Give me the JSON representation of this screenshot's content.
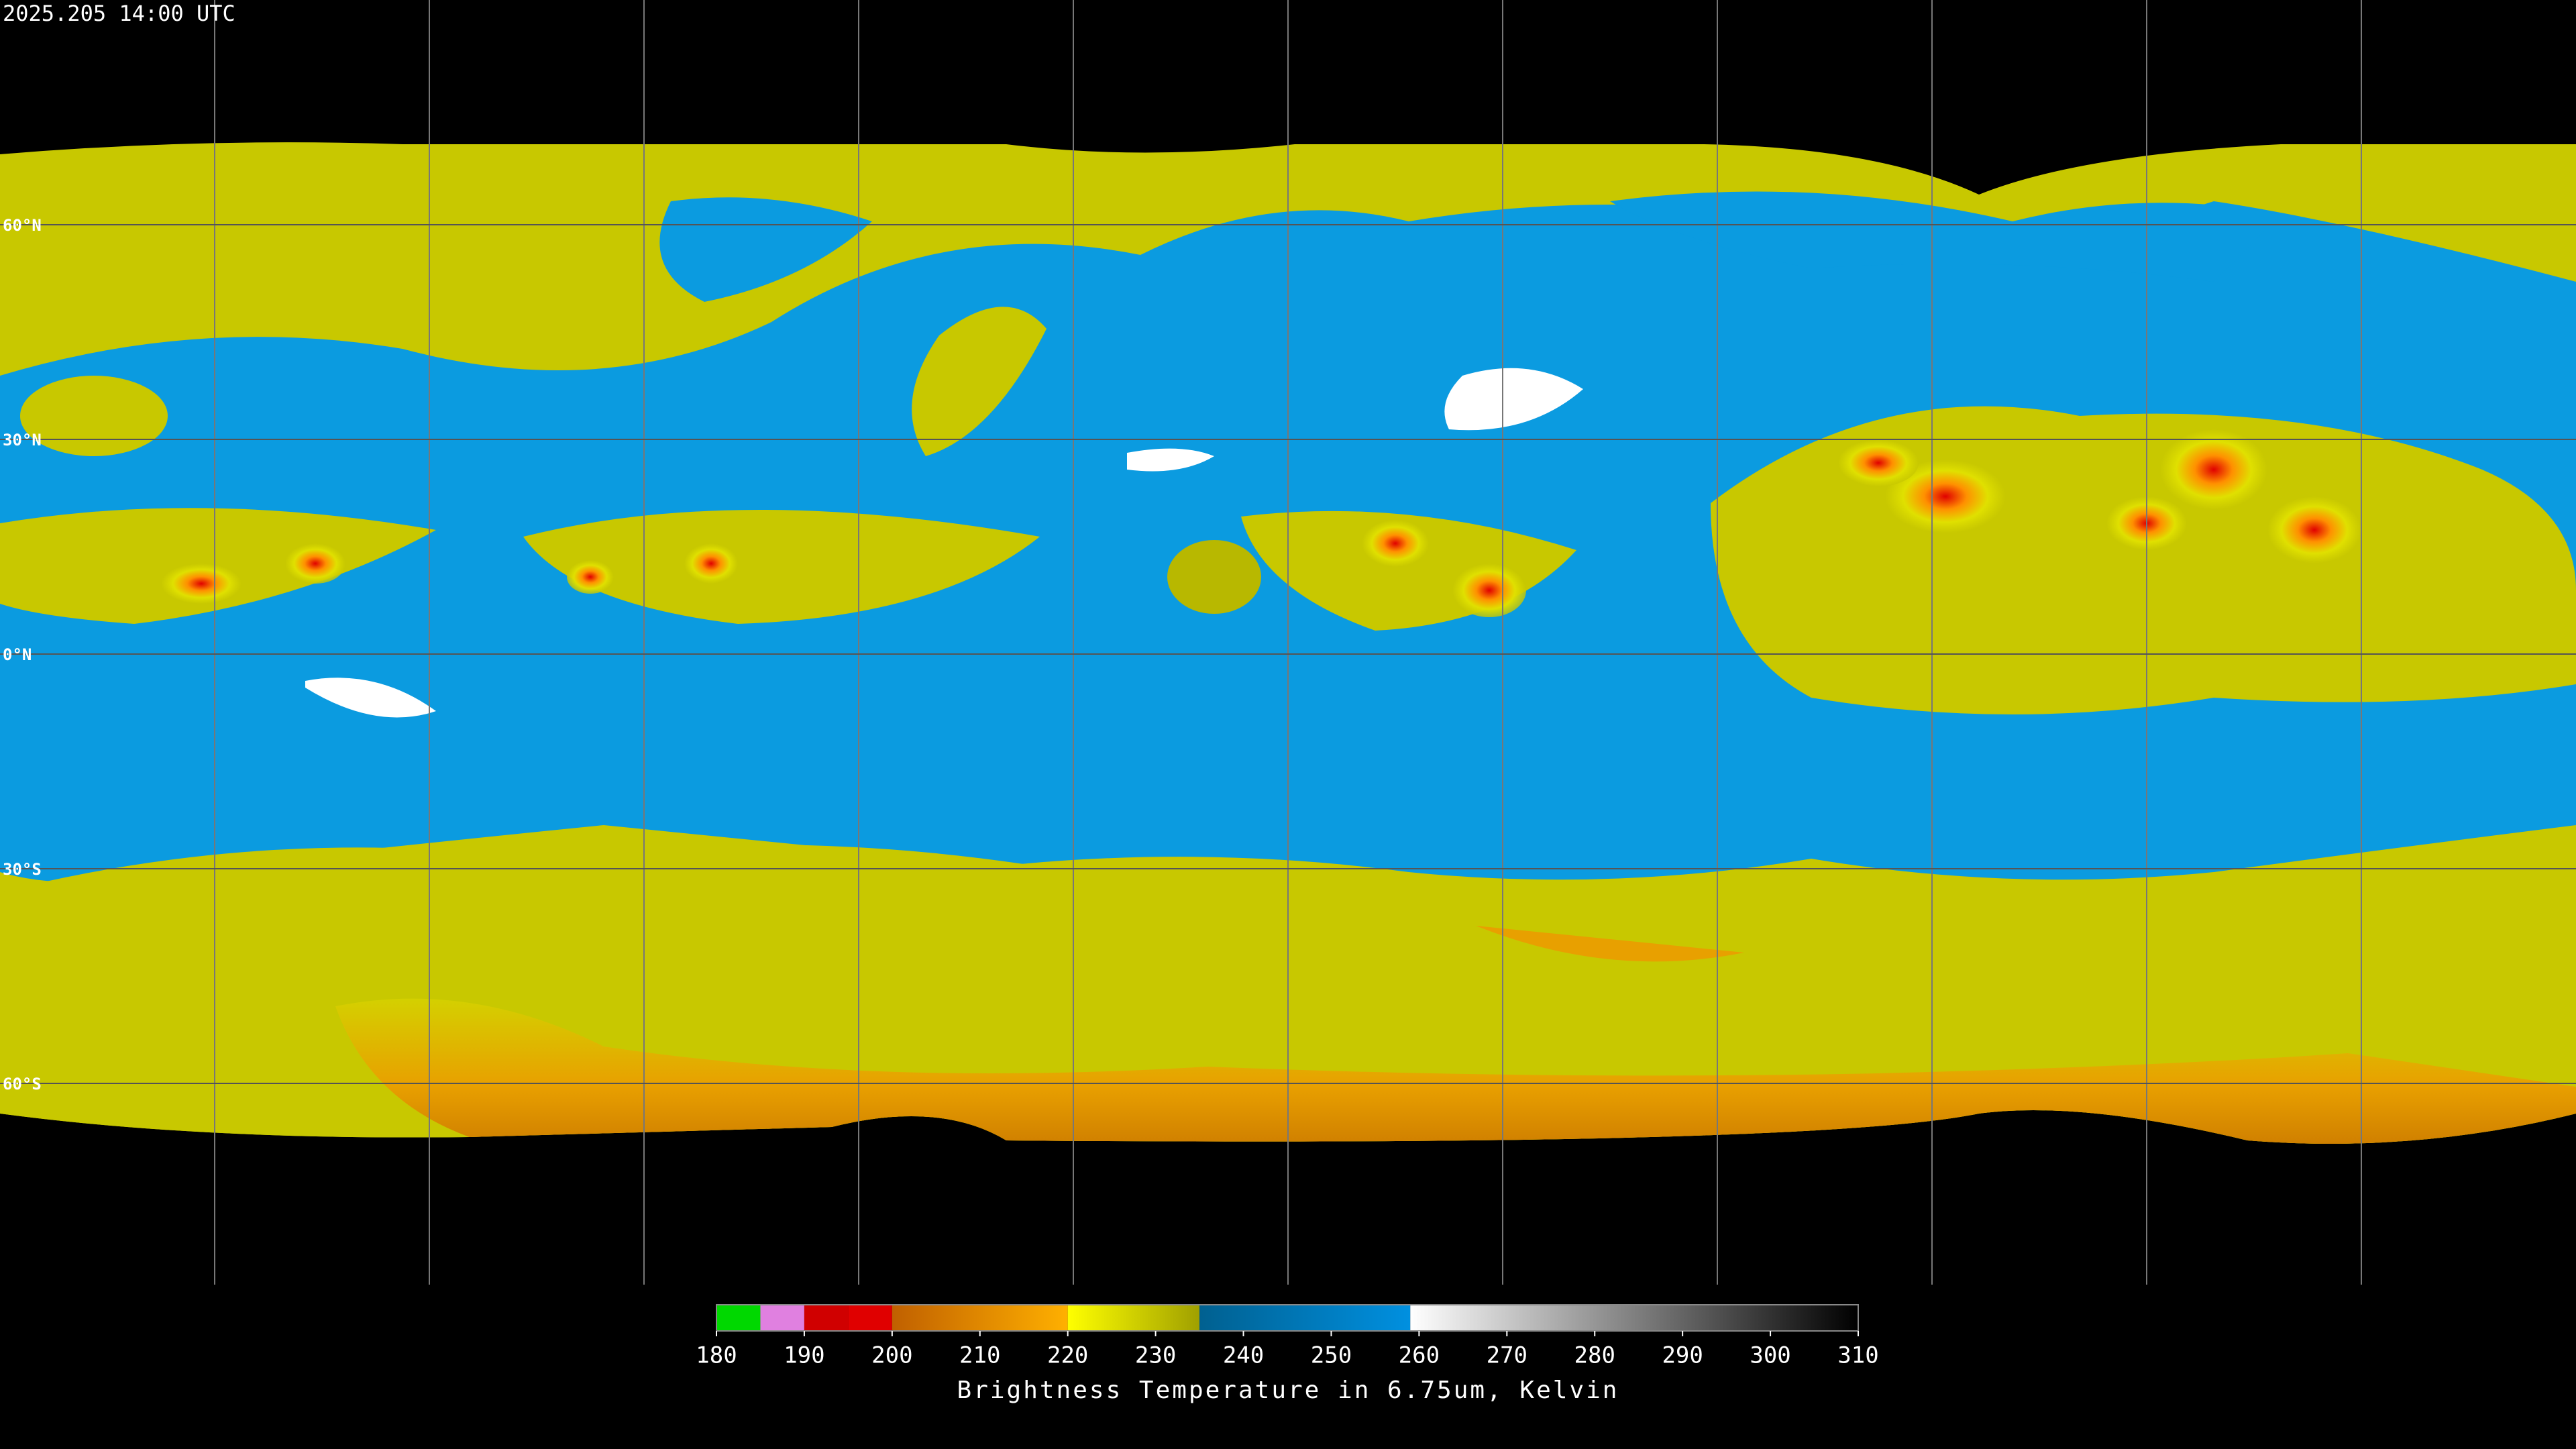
{
  "timestamp": "2025.205 14:00 UTC",
  "latitudes": [
    {
      "value": 60,
      "label": "60°N"
    },
    {
      "value": 30,
      "label": "30°N"
    },
    {
      "value": 0,
      "label": "0°N"
    },
    {
      "value": -30,
      "label": "30°S"
    },
    {
      "value": -60,
      "label": "60°S"
    }
  ],
  "colorbar": {
    "title": "Brightness Temperature in 6.75um, Kelvin",
    "lim": [
      180,
      310
    ],
    "ticks": [
      180,
      190,
      200,
      210,
      220,
      230,
      240,
      250,
      260,
      270,
      280,
      290,
      300,
      310
    ],
    "segments": [
      {
        "from": 180,
        "to": 185,
        "color": "#00d800",
        "color2": "#00d800"
      },
      {
        "from": 185,
        "to": 190,
        "color": "#e080e0",
        "color2": "#e080e0"
      },
      {
        "from": 190,
        "to": 195,
        "color": "#d00000",
        "color2": "#d00000"
      },
      {
        "from": 195,
        "to": 200,
        "color": "#e00000",
        "color2": "#e00000"
      },
      {
        "from": 200,
        "to": 220,
        "color": "#c06000",
        "color2": "#ffb000"
      },
      {
        "from": 220,
        "to": 235,
        "color": "#ffff00",
        "color2": "#a0a000"
      },
      {
        "from": 235,
        "to": 259,
        "color": "#006090",
        "color2": "#0090e0"
      },
      {
        "from": 259,
        "to": 310,
        "color": "#ffffff",
        "color2": "#000000"
      }
    ]
  }
}
